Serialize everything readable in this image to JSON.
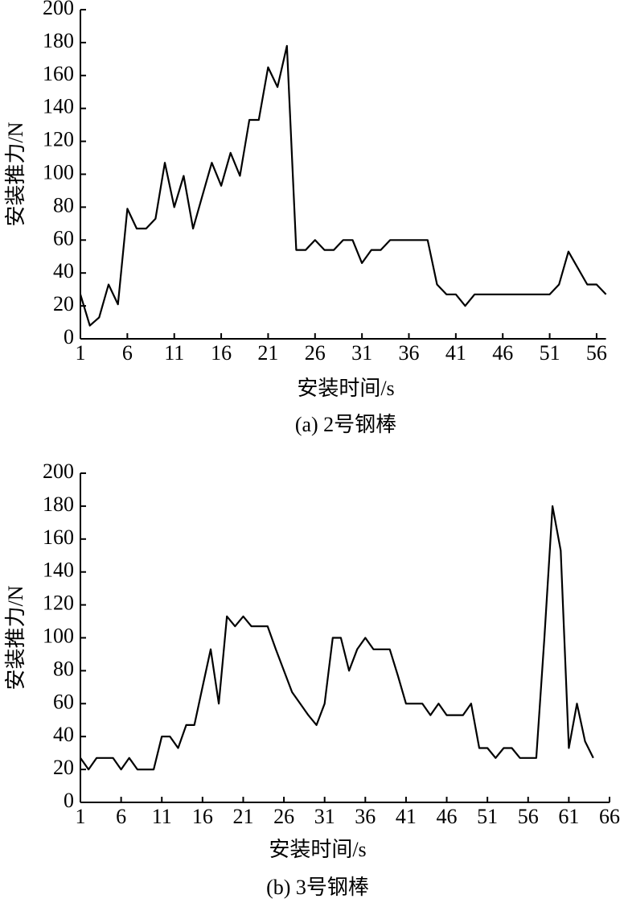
{
  "chart_data": [
    {
      "type": "line",
      "caption": "(a) 2号钢棒",
      "xlabel": "安装时间/s",
      "ylabel": "安装推力/N",
      "x": [
        1,
        2,
        3,
        4,
        5,
        6,
        7,
        8,
        9,
        10,
        11,
        12,
        13,
        14,
        15,
        16,
        17,
        18,
        19,
        20,
        21,
        22,
        23,
        24,
        25,
        26,
        27,
        28,
        29,
        30,
        31,
        32,
        33,
        34,
        35,
        36,
        37,
        38,
        39,
        40,
        41,
        42,
        43,
        44,
        45,
        46,
        47,
        48,
        49,
        50,
        51,
        52,
        53,
        54,
        55,
        56,
        57
      ],
      "series": [
        {
          "name": null,
          "color": "#000000",
          "values": [
            27,
            8,
            13,
            33,
            21,
            79,
            67,
            67,
            73,
            107,
            80,
            99,
            67,
            87,
            107,
            93,
            113,
            99,
            133,
            133,
            165,
            153,
            178,
            54,
            54,
            60,
            54,
            54,
            60,
            60,
            46,
            54,
            54,
            60,
            60,
            60,
            60,
            60,
            33,
            27,
            27,
            20,
            27,
            27,
            27,
            27,
            27,
            27,
            27,
            27,
            27,
            33,
            53,
            43,
            33,
            33,
            27
          ]
        }
      ],
      "xlim": [
        1,
        57
      ],
      "xticks": [
        1,
        6,
        11,
        16,
        21,
        26,
        31,
        36,
        41,
        46,
        51,
        56
      ],
      "ylim": [
        0,
        200
      ],
      "yticks": [
        0,
        20,
        40,
        60,
        80,
        100,
        120,
        140,
        160,
        180,
        200
      ]
    },
    {
      "type": "line",
      "caption": "(b) 3号钢棒",
      "xlabel": "安装时间/s",
      "ylabel": "安装推力/N",
      "x": [
        1,
        2,
        3,
        4,
        5,
        6,
        7,
        8,
        9,
        10,
        11,
        12,
        13,
        14,
        15,
        16,
        17,
        18,
        19,
        20,
        21,
        22,
        23,
        24,
        25,
        26,
        27,
        28,
        29,
        30,
        31,
        32,
        33,
        34,
        35,
        36,
        37,
        38,
        39,
        40,
        41,
        42,
        43,
        44,
        45,
        46,
        47,
        48,
        49,
        50,
        51,
        52,
        53,
        54,
        55,
        56,
        57,
        58,
        59,
        60,
        61,
        62,
        63,
        64
      ],
      "series": [
        {
          "name": null,
          "color": "#000000",
          "values": [
            27,
            20,
            27,
            27,
            27,
            20,
            27,
            20,
            20,
            20,
            40,
            40,
            33,
            47,
            47,
            70,
            93,
            60,
            113,
            107,
            113,
            107,
            107,
            107,
            93,
            80,
            67,
            60,
            53,
            47,
            60,
            100,
            100,
            80,
            93,
            100,
            93,
            93,
            93,
            77,
            60,
            60,
            60,
            53,
            60,
            53,
            53,
            53,
            60,
            33,
            33,
            27,
            33,
            33,
            27,
            27,
            27,
            100,
            180,
            153,
            33,
            60,
            37,
            27
          ]
        }
      ],
      "xlim": [
        1,
        66
      ],
      "xticks": [
        1,
        6,
        11,
        16,
        21,
        26,
        31,
        36,
        41,
        46,
        51,
        56,
        61,
        66
      ],
      "ylim": [
        0,
        200
      ],
      "yticks": [
        0,
        20,
        40,
        60,
        80,
        100,
        120,
        140,
        160,
        180,
        200
      ]
    }
  ]
}
